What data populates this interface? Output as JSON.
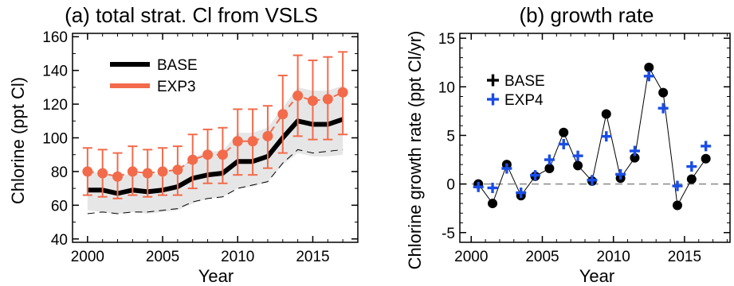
{
  "chart_data": [
    {
      "type": "line",
      "title": "(a) total strat. Cl from VSLS",
      "xlabel": "Year",
      "ylabel": "Chlorine (ppt Cl)",
      "xlim": [
        1999,
        2018
      ],
      "ylim": [
        38,
        162
      ],
      "xticks": [
        "2000",
        "2005",
        "2010",
        "2015"
      ],
      "yticks": [
        "40",
        "60",
        "80",
        "100",
        "120",
        "140",
        "160"
      ],
      "x": [
        2000,
        2001,
        2002,
        2003,
        2004,
        2005,
        2006,
        2007,
        2008,
        2009,
        2010,
        2011,
        2012,
        2013,
        2014,
        2015,
        2016,
        2017
      ],
      "series": [
        {
          "name": "BASE",
          "color": "#000000",
          "values": [
            69,
            69,
            67,
            69,
            68,
            69,
            71,
            76,
            78,
            79,
            86,
            86,
            89,
            100,
            110,
            108,
            108,
            111
          ]
        },
        {
          "name": "EXP3",
          "color": "#f26b4b",
          "values": [
            80,
            79,
            77,
            80,
            79,
            80,
            81,
            87,
            90,
            90,
            98,
            98,
            101,
            114,
            125,
            122,
            123,
            127
          ],
          "err_low": [
            66,
            65,
            64,
            66,
            65,
            66,
            66,
            70,
            73,
            73,
            78,
            78,
            82,
            91,
            101,
            99,
            99,
            102
          ],
          "err_high": [
            94,
            93,
            91,
            95,
            93,
            94,
            95,
            102,
            105,
            106,
            117,
            117,
            119,
            137,
            149,
            146,
            148,
            151
          ]
        }
      ],
      "shade": {
        "color": "#e6e6e6",
        "low": [
          57,
          56,
          55,
          56,
          55,
          56,
          57,
          61,
          64,
          65,
          70,
          71,
          74,
          84,
          91,
          89,
          89,
          90
        ],
        "high": [
          80,
          79,
          77,
          79,
          78,
          79,
          81,
          88,
          92,
          92,
          103,
          103,
          106,
          118,
          130,
          128,
          128,
          131
        ]
      },
      "dashed_low": [
        55,
        56,
        55,
        56,
        56,
        57,
        58,
        62,
        64,
        65,
        70,
        72,
        74,
        85,
        93,
        91,
        92,
        93
      ],
      "legend": "top-left"
    },
    {
      "type": "scatter",
      "title": "(b) growth rate",
      "xlabel": "Year",
      "ylabel": "Chlorine growth rate (ppt Cl/yr)",
      "xlim": [
        1999.2,
        2018.2
      ],
      "ylim": [
        -6,
        15.5
      ],
      "xticks": [
        "2000",
        "2005",
        "2010",
        "2015"
      ],
      "yticks": [
        "-5",
        "0",
        "5",
        "10",
        "15"
      ],
      "zero_line": true,
      "series": [
        {
          "name": "BASE",
          "color": "#000000",
          "marker": "circle",
          "x": [
            2000.5,
            2001.5,
            2002.5,
            2003.5,
            2004.5,
            2005.5,
            2006.5,
            2007.5,
            2008.5,
            2009.5,
            2010.5,
            2011.5,
            2012.5,
            2013.5,
            2014.5,
            2015.5,
            2016.5
          ],
          "values": [
            0.0,
            -2.0,
            2.0,
            -1.2,
            0.8,
            1.6,
            5.3,
            1.9,
            0.3,
            7.2,
            0.6,
            2.7,
            12.0,
            9.4,
            -2.2,
            0.5,
            2.6
          ]
        },
        {
          "name": "EXP4",
          "color": "#1a4de6",
          "marker": "plus",
          "x": [
            2000.5,
            2001.5,
            2002.5,
            2003.5,
            2004.5,
            2005.5,
            2006.5,
            2007.5,
            2008.5,
            2009.5,
            2010.5,
            2011.5,
            2012.5,
            2013.5,
            2014.5,
            2015.5,
            2016.5
          ],
          "values": [
            -0.3,
            -0.4,
            1.6,
            -0.9,
            0.9,
            2.5,
            4.1,
            2.9,
            0.4,
            4.9,
            1.0,
            3.4,
            11.1,
            7.8,
            -0.2,
            1.8,
            3.9
          ]
        }
      ],
      "legend": "top-left"
    }
  ]
}
